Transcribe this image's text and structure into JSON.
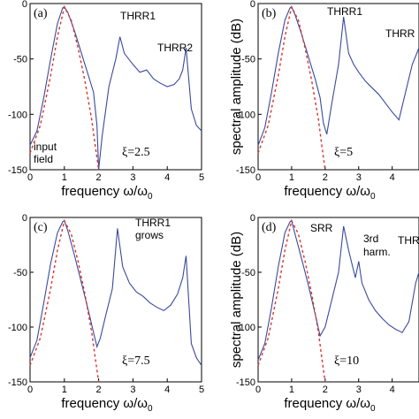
{
  "figure": {
    "ylabel": "spectral amplitude (dB)",
    "xlabel_main": "frequency ω/ω",
    "xlabel_sub": "0"
  },
  "colors": {
    "spectrum": "#3a4a9c",
    "input_field": "#d9342b",
    "axis": "#000000"
  },
  "chart_data": [
    {
      "panel": "(a)",
      "type": "line",
      "xlim": [
        0,
        5
      ],
      "ylim": [
        -150,
        0
      ],
      "xticks": [
        "0",
        "1",
        "2",
        "3",
        "4",
        "5"
      ],
      "yticks": [
        "-150",
        "-100",
        "-50",
        "0"
      ],
      "parameter": "ξ=2.5",
      "annotations": [
        "THRR1",
        "THRR2",
        "input",
        "field"
      ],
      "series": [
        {
          "name": "",
          "style": "solid",
          "x": [
            0,
            0.2,
            0.4,
            0.6,
            0.8,
            0.95,
            1.0,
            1.1,
            1.3,
            1.5,
            1.7,
            1.85,
            1.95,
            2.0,
            2.1,
            2.3,
            2.5,
            2.62,
            2.75,
            3.0,
            3.2,
            3.4,
            3.6,
            3.8,
            4.0,
            4.2,
            4.35,
            4.45,
            4.55,
            4.7,
            4.85,
            5.0
          ],
          "y": [
            -128,
            -115,
            -85,
            -50,
            -18,
            -4,
            -3,
            -8,
            -25,
            -45,
            -65,
            -80,
            -110,
            -150,
            -120,
            -75,
            -50,
            -30,
            -45,
            -55,
            -62,
            -60,
            -68,
            -72,
            -75,
            -73,
            -68,
            -60,
            -40,
            -95,
            -110,
            -115
          ]
        },
        {
          "name": "",
          "style": "dashed",
          "x": [
            0,
            0.3,
            0.6,
            0.8,
            1.0,
            1.2,
            1.4,
            1.6,
            1.8,
            1.9,
            2.0
          ],
          "y": [
            -135,
            -110,
            -65,
            -30,
            -3,
            -15,
            -40,
            -70,
            -105,
            -128,
            -150
          ]
        }
      ]
    },
    {
      "panel": "(b)",
      "type": "line",
      "xlim": [
        0,
        4.8
      ],
      "ylim": [
        -150,
        0
      ],
      "xticks": [
        "0",
        "1",
        "2",
        "3",
        "4"
      ],
      "yticks": [
        "-150",
        "-100",
        "-50",
        "0"
      ],
      "parameter": "ξ=5",
      "annotations": [
        "THRR1",
        "THRR"
      ],
      "series": [
        {
          "name": "",
          "style": "solid",
          "x": [
            0,
            0.2,
            0.4,
            0.6,
            0.8,
            0.95,
            1.0,
            1.1,
            1.3,
            1.5,
            1.7,
            1.85,
            1.95,
            2.05,
            2.2,
            2.4,
            2.55,
            2.7,
            2.85,
            3.0,
            3.2,
            3.4,
            3.6,
            3.8,
            4.0,
            4.2,
            4.4,
            4.6,
            4.8
          ],
          "y": [
            -128,
            -112,
            -80,
            -45,
            -15,
            -4,
            -3,
            -10,
            -28,
            -48,
            -68,
            -85,
            -108,
            -118,
            -90,
            -55,
            -12,
            -45,
            -55,
            -62,
            -70,
            -76,
            -82,
            -90,
            -98,
            -105,
            -80,
            -55,
            -40
          ]
        },
        {
          "name": "",
          "style": "dashed",
          "x": [
            0,
            0.3,
            0.6,
            0.8,
            1.0,
            1.2,
            1.4,
            1.6,
            1.8,
            1.9,
            2.0
          ],
          "y": [
            -135,
            -110,
            -65,
            -30,
            -3,
            -15,
            -40,
            -70,
            -105,
            -128,
            -150
          ]
        }
      ]
    },
    {
      "panel": "(c)",
      "type": "line",
      "xlim": [
        0,
        5
      ],
      "ylim": [
        -150,
        0
      ],
      "xticks": [
        "0",
        "1",
        "2",
        "3",
        "4",
        "5"
      ],
      "yticks": [
        "-150",
        "-100",
        "-50",
        "0"
      ],
      "parameter": "ξ=7.5",
      "annotations": [
        "THRR1",
        "grows"
      ],
      "series": [
        {
          "name": "",
          "style": "solid",
          "x": [
            0,
            0.2,
            0.4,
            0.6,
            0.8,
            0.95,
            1.0,
            1.1,
            1.3,
            1.5,
            1.7,
            1.85,
            1.95,
            2.05,
            2.2,
            2.4,
            2.55,
            2.7,
            2.9,
            3.1,
            3.3,
            3.5,
            3.7,
            3.9,
            4.1,
            4.3,
            4.45,
            4.55,
            4.7,
            4.85,
            5.0
          ],
          "y": [
            -128,
            -112,
            -78,
            -42,
            -14,
            -4,
            -3,
            -12,
            -35,
            -60,
            -85,
            -105,
            -118,
            -110,
            -90,
            -65,
            -10,
            -45,
            -60,
            -68,
            -72,
            -78,
            -82,
            -85,
            -80,
            -70,
            -55,
            -35,
            -115,
            -128,
            -135
          ]
        },
        {
          "name": "",
          "style": "dashed",
          "x": [
            0,
            0.3,
            0.6,
            0.8,
            1.0,
            1.2,
            1.4,
            1.6,
            1.8,
            1.9,
            2.0
          ],
          "y": [
            -135,
            -110,
            -65,
            -30,
            -3,
            -15,
            -40,
            -70,
            -105,
            -128,
            -150
          ]
        }
      ]
    },
    {
      "panel": "(d)",
      "type": "line",
      "xlim": [
        0,
        4.8
      ],
      "ylim": [
        -150,
        0
      ],
      "xticks": [
        "0",
        "1",
        "2",
        "3",
        "4"
      ],
      "yticks": [
        "-150",
        "-100",
        "-50",
        "0"
      ],
      "parameter": "ξ=10",
      "annotations": [
        "SRR",
        "3rd",
        "harm.",
        "THR"
      ],
      "series": [
        {
          "name": "",
          "style": "solid",
          "x": [
            0,
            0.2,
            0.4,
            0.6,
            0.8,
            0.95,
            1.0,
            1.1,
            1.3,
            1.5,
            1.7,
            1.85,
            2.0,
            2.2,
            2.4,
            2.55,
            2.7,
            2.9,
            3.0,
            3.1,
            3.3,
            3.5,
            3.7,
            3.9,
            4.1,
            4.3,
            4.5,
            4.7,
            4.8
          ],
          "y": [
            -130,
            -115,
            -82,
            -45,
            -14,
            -4,
            -3,
            -15,
            -38,
            -62,
            -88,
            -108,
            -100,
            -75,
            -50,
            -8,
            -30,
            -55,
            -40,
            -60,
            -75,
            -85,
            -92,
            -98,
            -102,
            -105,
            -95,
            -60,
            -50
          ]
        },
        {
          "name": "",
          "style": "dashed",
          "x": [
            0,
            0.3,
            0.6,
            0.8,
            1.0,
            1.2,
            1.4,
            1.6,
            1.8,
            1.9,
            2.0
          ],
          "y": [
            -135,
            -110,
            -65,
            -30,
            -3,
            -15,
            -40,
            -70,
            -105,
            -128,
            -150
          ]
        }
      ]
    }
  ]
}
